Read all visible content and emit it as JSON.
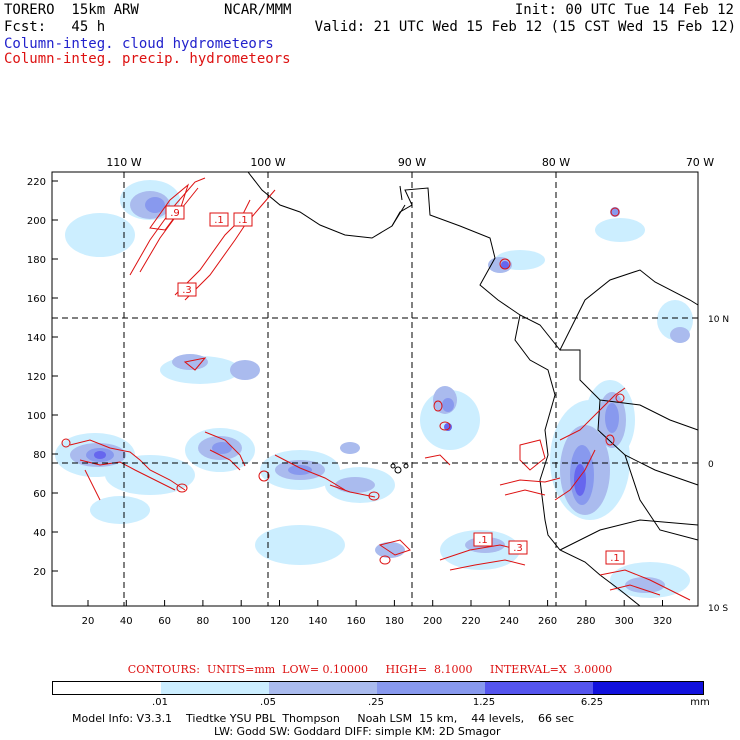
{
  "header": {
    "model": "TORERO  15km ARW",
    "center": "NCAR/MMM",
    "init": "Init: 00 UTC Tue 14 Feb 12",
    "fcst": "Fcst:   45 h",
    "valid": "Valid: 21 UTC Wed 15 Feb 12 (15 CST Wed 15 Feb 12)",
    "field1": "Column-integ. cloud hydrometeors",
    "field2": "Column-integ. precip. hydrometeors"
  },
  "colors": {
    "field1": "#2222cc",
    "field2": "#dd1111",
    "shade": [
      "#ffffff",
      "#cceeff",
      "#aabbee",
      "#8899ee",
      "#6666ee",
      "#3333ee",
      "#1111dd"
    ]
  },
  "map": {
    "top_lon_labels": [
      "110 W",
      "100 W",
      "90 W",
      "80 W",
      "70 W"
    ],
    "right_lat_labels": [
      "10 N",
      "0",
      "10 S"
    ],
    "left_y_ticks": [
      "220",
      "200",
      "180",
      "160",
      "140",
      "120",
      "100",
      "80",
      "60",
      "40",
      "20"
    ],
    "bottom_x_ticks": [
      "20",
      "40",
      "60",
      "80",
      "100",
      "120",
      "140",
      "160",
      "180",
      "200",
      "220",
      "240",
      "260",
      "280",
      "300",
      "320"
    ],
    "box_labels": [
      ".9",
      ".1",
      ".1",
      ".3",
      ".1",
      ".3",
      ".1"
    ]
  },
  "contours": {
    "text": "CONTOURS:  UNITS=mm  LOW= 0.10000     HIGH=  8.1000     INTERVAL=X  3.0000"
  },
  "colorbar": {
    "labels": [
      ".01",
      ".05",
      ".25",
      "1.25",
      "6.25"
    ],
    "unit": "mm"
  },
  "footer": {
    "line1": "Model Info: V3.3.1    Tiedtke YSU PBL  Thompson     Noah LSM  15 km,    44 levels,    66 sec",
    "line2": "LW: Godd SW: Goddard DIFF: simple KM: 2D Smagor"
  }
}
